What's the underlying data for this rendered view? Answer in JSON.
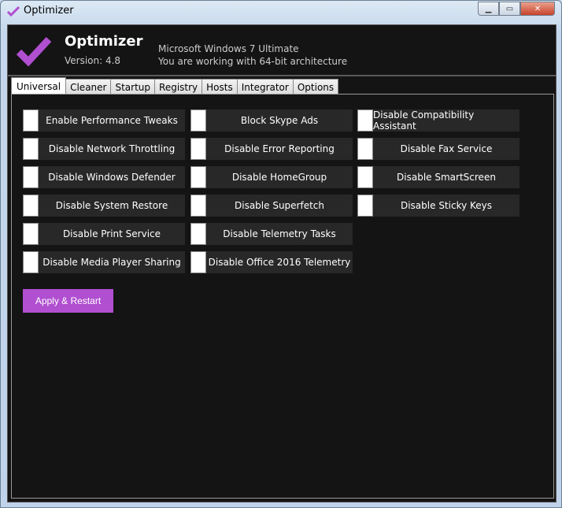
{
  "window": {
    "title": "Optimizer",
    "accent": "#b04fd0"
  },
  "header": {
    "app_name": "Optimizer",
    "version": "Version: 4.8",
    "os": "Microsoft Windows 7 Ultimate",
    "arch": "You are working with 64-bit architecture"
  },
  "tabs": [
    "Universal",
    "Cleaner",
    "Startup",
    "Registry",
    "Hosts",
    "Integrator",
    "Options"
  ],
  "active_tab": "Universal",
  "columns": [
    [
      "Enable Performance Tweaks",
      "Disable Network Throttling",
      "Disable Windows Defender",
      "Disable System Restore",
      "Disable Print Service",
      "Disable Media Player Sharing"
    ],
    [
      "Block Skype Ads",
      "Disable Error Reporting",
      "Disable HomeGroup",
      "Disable Superfetch",
      "Disable Telemetry Tasks",
      "Disable Office 2016 Telemetry"
    ],
    [
      "Disable Compatibility Assistant",
      "Disable Fax Service",
      "Disable SmartScreen",
      "Disable Sticky Keys"
    ]
  ],
  "apply_label": "Apply & Restart"
}
